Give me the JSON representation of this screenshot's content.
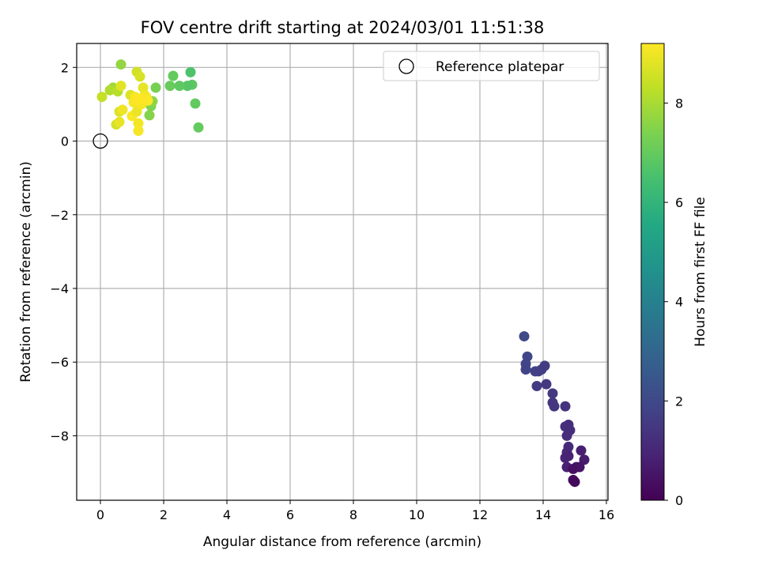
{
  "chart_data": {
    "type": "scatter",
    "title": "FOV centre drift starting at 2024/03/01 11:51:38",
    "xlabel": "Angular distance from reference (arcmin)",
    "ylabel": "Rotation from reference (arcmin)",
    "xlim": [
      -0.75,
      16.05
    ],
    "ylim": [
      -9.75,
      2.65
    ],
    "xticks": [
      0,
      2,
      4,
      6,
      8,
      10,
      12,
      14,
      16
    ],
    "yticks": [
      2,
      0,
      -2,
      -4,
      -6,
      -8
    ],
    "grid": true,
    "legend": {
      "placement": "top-right",
      "entries": [
        "Reference platepar"
      ]
    },
    "reference_point": {
      "x": 0,
      "y": 0
    },
    "colorbar": {
      "label": "Hours from first FF file",
      "range": [
        0,
        9.2
      ],
      "ticks": [
        0,
        2,
        4,
        6,
        8
      ],
      "colormap": "viridis"
    },
    "points": [
      {
        "x": 13.4,
        "y": -5.3,
        "c": 2.0
      },
      {
        "x": 13.5,
        "y": -5.85,
        "c": 1.95
      },
      {
        "x": 13.45,
        "y": -6.05,
        "c": 1.9
      },
      {
        "x": 13.45,
        "y": -6.2,
        "c": 1.85
      },
      {
        "x": 13.75,
        "y": -6.25,
        "c": 1.8
      },
      {
        "x": 13.85,
        "y": -6.25,
        "c": 1.75
      },
      {
        "x": 13.95,
        "y": -6.2,
        "c": 1.7
      },
      {
        "x": 14.05,
        "y": -6.1,
        "c": 1.65
      },
      {
        "x": 13.8,
        "y": -6.65,
        "c": 1.6
      },
      {
        "x": 14.1,
        "y": -6.6,
        "c": 1.55
      },
      {
        "x": 14.3,
        "y": -6.85,
        "c": 1.5
      },
      {
        "x": 14.3,
        "y": -7.1,
        "c": 1.45
      },
      {
        "x": 14.35,
        "y": -7.2,
        "c": 1.4
      },
      {
        "x": 14.7,
        "y": -7.2,
        "c": 1.35
      },
      {
        "x": 14.7,
        "y": -7.75,
        "c": 1.3
      },
      {
        "x": 14.8,
        "y": -7.7,
        "c": 1.25
      },
      {
        "x": 14.85,
        "y": -7.85,
        "c": 1.2
      },
      {
        "x": 14.75,
        "y": -8.0,
        "c": 1.15
      },
      {
        "x": 14.8,
        "y": -8.3,
        "c": 1.1
      },
      {
        "x": 14.75,
        "y": -8.45,
        "c": 1.0
      },
      {
        "x": 14.7,
        "y": -8.6,
        "c": 0.95
      },
      {
        "x": 14.8,
        "y": -8.55,
        "c": 0.9
      },
      {
        "x": 14.75,
        "y": -8.85,
        "c": 0.85
      },
      {
        "x": 15.2,
        "y": -8.4,
        "c": 0.8
      },
      {
        "x": 15.3,
        "y": -8.65,
        "c": 0.7
      },
      {
        "x": 15.05,
        "y": -8.85,
        "c": 0.6
      },
      {
        "x": 15.15,
        "y": -8.85,
        "c": 0.5
      },
      {
        "x": 14.95,
        "y": -8.9,
        "c": 0.4
      },
      {
        "x": 14.95,
        "y": -9.2,
        "c": 0.3
      },
      {
        "x": 15.0,
        "y": -9.25,
        "c": 0.2
      },
      {
        "x": 3.1,
        "y": 0.37,
        "c": 7.0
      },
      {
        "x": 3.0,
        "y": 1.02,
        "c": 6.95
      },
      {
        "x": 2.9,
        "y": 1.53,
        "c": 6.85
      },
      {
        "x": 2.85,
        "y": 1.87,
        "c": 6.6
      },
      {
        "x": 2.75,
        "y": 1.5,
        "c": 6.75
      },
      {
        "x": 2.5,
        "y": 1.5,
        "c": 6.9
      },
      {
        "x": 2.3,
        "y": 1.77,
        "c": 7.0
      },
      {
        "x": 2.2,
        "y": 1.5,
        "c": 7.05
      },
      {
        "x": 1.75,
        "y": 1.45,
        "c": 7.3
      },
      {
        "x": 1.6,
        "y": 0.95,
        "c": 7.4
      },
      {
        "x": 1.55,
        "y": 0.7,
        "c": 7.5
      },
      {
        "x": 1.65,
        "y": 1.08,
        "c": 7.6
      },
      {
        "x": 0.65,
        "y": 2.08,
        "c": 7.7
      },
      {
        "x": 0.4,
        "y": 1.45,
        "c": 7.9
      },
      {
        "x": 0.3,
        "y": 1.38,
        "c": 8.1
      },
      {
        "x": 0.55,
        "y": 1.35,
        "c": 8.2
      },
      {
        "x": 0.05,
        "y": 1.2,
        "c": 8.4
      },
      {
        "x": 0.5,
        "y": 0.45,
        "c": 8.6
      },
      {
        "x": 0.6,
        "y": 0.8,
        "c": 8.7
      },
      {
        "x": 0.65,
        "y": 1.5,
        "c": 8.8
      },
      {
        "x": 1.15,
        "y": 1.88,
        "c": 8.55
      },
      {
        "x": 1.25,
        "y": 1.75,
        "c": 8.65
      },
      {
        "x": 0.6,
        "y": 0.52,
        "c": 8.9
      },
      {
        "x": 0.7,
        "y": 0.85,
        "c": 9.0
      },
      {
        "x": 0.95,
        "y": 1.25,
        "c": 8.75
      },
      {
        "x": 1.05,
        "y": 1.05,
        "c": 9.1
      },
      {
        "x": 1.1,
        "y": 1.2,
        "c": 9.05
      },
      {
        "x": 1.0,
        "y": 0.68,
        "c": 9.15
      },
      {
        "x": 1.15,
        "y": 0.8,
        "c": 8.95
      },
      {
        "x": 1.2,
        "y": 0.48,
        "c": 9.05
      },
      {
        "x": 1.2,
        "y": 0.28,
        "c": 9.1
      },
      {
        "x": 1.3,
        "y": 1.0,
        "c": 9.12
      },
      {
        "x": 1.35,
        "y": 1.45,
        "c": 8.85
      },
      {
        "x": 1.4,
        "y": 1.25,
        "c": 9.0
      },
      {
        "x": 1.45,
        "y": 1.2,
        "c": 9.08
      },
      {
        "x": 1.5,
        "y": 1.1,
        "c": 9.15
      },
      {
        "x": 1.15,
        "y": 1.15,
        "c": 9.18
      },
      {
        "x": 1.3,
        "y": 1.15,
        "c": 9.2
      }
    ]
  }
}
